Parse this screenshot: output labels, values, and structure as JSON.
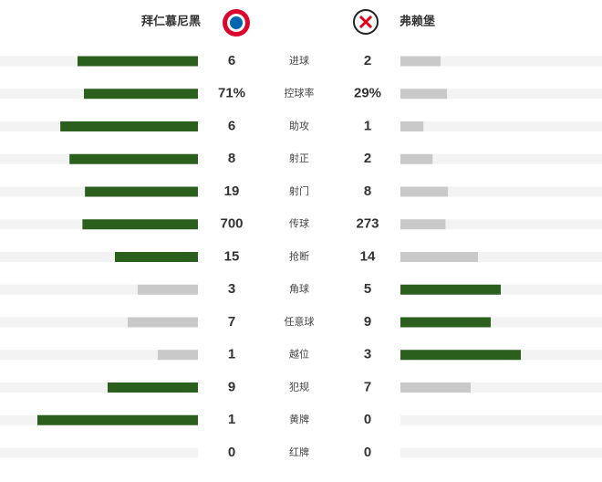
{
  "home_team": "拜仁慕尼黑",
  "away_team": "弗赖堡",
  "win_color": "#2b5f1e",
  "lose_color": "#c9c9c9",
  "track_color": "#f3f3f3",
  "stats": [
    {
      "label": "进球",
      "home": 6,
      "away": 2
    },
    {
      "label": "控球率",
      "home": 71,
      "away": 29,
      "home_label": "71%",
      "away_label": "29%"
    },
    {
      "label": "助攻",
      "home": 6,
      "away": 1
    },
    {
      "label": "射正",
      "home": 8,
      "away": 2
    },
    {
      "label": "射门",
      "home": 19,
      "away": 8
    },
    {
      "label": "传球",
      "home": 700,
      "away": 273
    },
    {
      "label": "抢断",
      "home": 15,
      "away": 14
    },
    {
      "label": "角球",
      "home": 3,
      "away": 5
    },
    {
      "label": "任意球",
      "home": 7,
      "away": 9
    },
    {
      "label": "越位",
      "home": 1,
      "away": 3
    },
    {
      "label": "犯规",
      "home": 9,
      "away": 7
    },
    {
      "label": "黄牌",
      "home": 1,
      "away": 0
    },
    {
      "label": "红牌",
      "home": 0,
      "away": 0
    }
  ]
}
